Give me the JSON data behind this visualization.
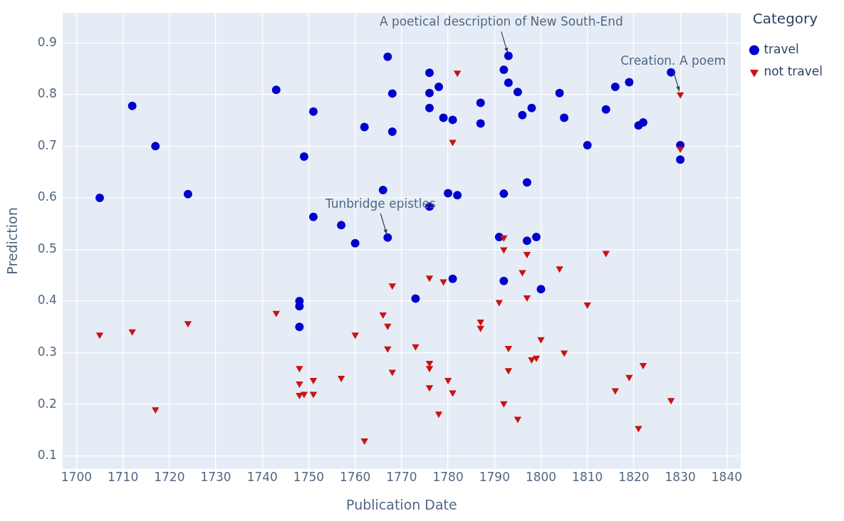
{
  "chart_data": {
    "type": "scatter",
    "xlabel": "Publication Date",
    "ylabel": "Prediction",
    "legend_title": "Category",
    "legend": "top right",
    "grid": true,
    "xlim": [
      1697,
      1843
    ],
    "xticks": [
      1700,
      1710,
      1720,
      1730,
      1740,
      1750,
      1760,
      1770,
      1780,
      1790,
      1800,
      1810,
      1820,
      1830,
      1840
    ],
    "ylim": [
      0.075,
      0.958
    ],
    "yticks": [
      0.1,
      0.2,
      0.3,
      0.4,
      0.5,
      0.6,
      0.7,
      0.8,
      0.9
    ],
    "annotations": [
      {
        "text": "A poetical description of New South-End",
        "x": 1793,
        "y": 0.875
      },
      {
        "text": "Creation. A poem",
        "x": 1830,
        "y": 0.8
      },
      {
        "text": "Tunbridge epistles",
        "x": 1767,
        "y": 0.523
      }
    ],
    "series": [
      {
        "name": "travel",
        "color": "#0000cc",
        "marker": "circle",
        "x": [
          1705,
          1712,
          1717,
          1724,
          1743,
          1751,
          1749,
          1751,
          1757,
          1760,
          1762,
          1767,
          1768,
          1768,
          1766,
          1767,
          1748,
          1748,
          1748,
          1773,
          1776,
          1776,
          1778,
          1776,
          1779,
          1781,
          1776,
          1780,
          1782,
          1781,
          1787,
          1787,
          1792,
          1793,
          1793,
          1795,
          1798,
          1796,
          1792,
          1797,
          1791,
          1797,
          1799,
          1792,
          1800,
          1804,
          1805,
          1810,
          1814,
          1816,
          1819,
          1821,
          1822,
          1828,
          1830,
          1830
        ],
        "values": [
          0.6,
          0.778,
          0.7,
          0.607,
          0.809,
          0.767,
          0.68,
          0.563,
          0.547,
          0.512,
          0.737,
          0.873,
          0.802,
          0.728,
          0.615,
          0.523,
          0.4,
          0.39,
          0.35,
          0.405,
          0.842,
          0.803,
          0.815,
          0.774,
          0.755,
          0.751,
          0.583,
          0.609,
          0.605,
          0.443,
          0.784,
          0.744,
          0.848,
          0.875,
          0.823,
          0.805,
          0.774,
          0.76,
          0.608,
          0.63,
          0.524,
          0.517,
          0.524,
          0.439,
          0.423,
          0.803,
          0.755,
          0.702,
          0.771,
          0.815,
          0.824,
          0.74,
          0.746,
          0.843,
          0.702,
          0.674
        ]
      },
      {
        "name": "not travel",
        "color": "#cc1111",
        "marker": "triangle",
        "x": [
          1705,
          1712,
          1717,
          1724,
          1743,
          1748,
          1748,
          1748,
          1749,
          1751,
          1751,
          1757,
          1760,
          1762,
          1766,
          1767,
          1767,
          1768,
          1768,
          1773,
          1776,
          1776,
          1776,
          1776,
          1778,
          1779,
          1780,
          1781,
          1781,
          1782,
          1787,
          1787,
          1791,
          1792,
          1792,
          1792,
          1793,
          1793,
          1795,
          1796,
          1797,
          1797,
          1798,
          1799,
          1800,
          1804,
          1805,
          1810,
          1814,
          1816,
          1819,
          1821,
          1822,
          1828,
          1830,
          1830
        ],
        "values": [
          0.335,
          0.341,
          0.19,
          0.357,
          0.377,
          0.27,
          0.24,
          0.218,
          0.22,
          0.22,
          0.247,
          0.251,
          0.335,
          0.13,
          0.374,
          0.352,
          0.308,
          0.43,
          0.263,
          0.312,
          0.445,
          0.28,
          0.27,
          0.233,
          0.182,
          0.438,
          0.247,
          0.223,
          0.708,
          0.842,
          0.36,
          0.348,
          0.398,
          0.523,
          0.5,
          0.202,
          0.309,
          0.266,
          0.172,
          0.456,
          0.491,
          0.407,
          0.287,
          0.29,
          0.326,
          0.463,
          0.3,
          0.393,
          0.493,
          0.227,
          0.253,
          0.154,
          0.276,
          0.208,
          0.8,
          0.695
        ]
      }
    ]
  }
}
